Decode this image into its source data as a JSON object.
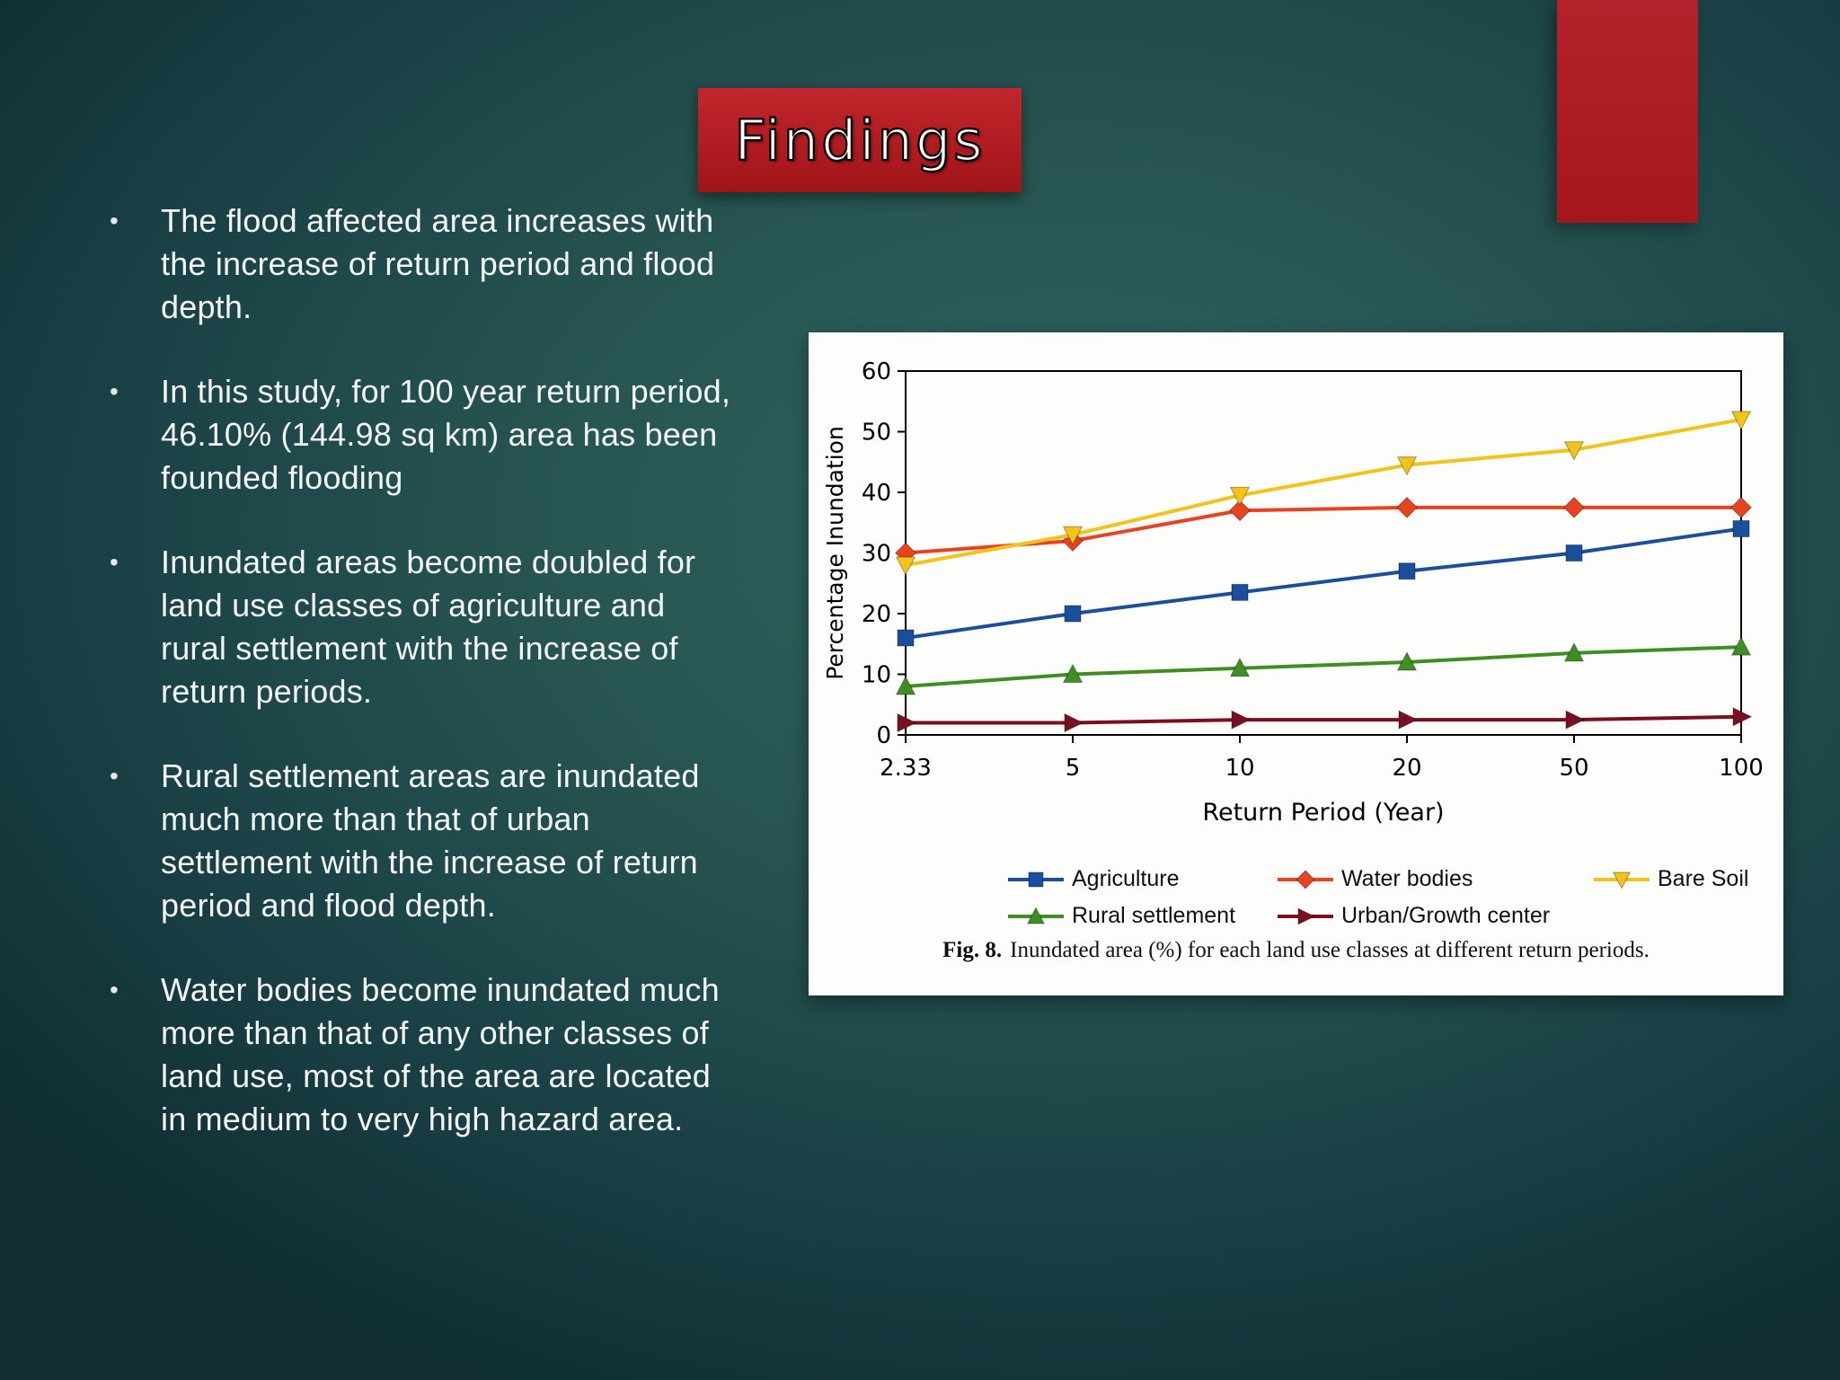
{
  "slide": {
    "title": "Findings",
    "bullet_char": "•",
    "bullets": [
      "The flood affected area increases with the increase of return period and flood depth.",
      "In this study, for 100 year return period, 46.10% (144.98 sq km) area has been founded flooding",
      "Inundated areas become doubled for land use classes of agriculture and rural settlement with the increase of return periods.",
      "Rural settlement areas are inundated much more than that of urban settlement with the increase of return period and flood depth.",
      "Water bodies become inundated much more than that of any other classes of land use, most of the area are located in medium to very high hazard area."
    ]
  },
  "figure": {
    "caption_prefix": "Fig. 8.",
    "caption_text": "Inundated area (%) for each land use classes at different return periods."
  },
  "colors": {
    "accent_red": "#b2222a",
    "background_teal": "#275551",
    "panel_white": "#fdfdfc"
  },
  "chart_data": {
    "type": "line",
    "title": "",
    "xlabel": "Return Period (Year)",
    "ylabel": "Percentage Inundation",
    "categories": [
      "2.33",
      "5",
      "10",
      "20",
      "50",
      "100"
    ],
    "ylim": [
      0,
      60
    ],
    "ytick_step": 10,
    "grid": false,
    "legend_position": "bottom",
    "series": [
      {
        "name": "Agriculture",
        "color": "#1b4f9c",
        "marker": "square",
        "values": [
          16,
          20,
          23.5,
          27,
          30,
          34
        ]
      },
      {
        "name": "Water bodies",
        "color": "#e8431f",
        "marker": "diamond",
        "values": [
          30,
          32,
          37,
          37.5,
          37.5,
          37.5
        ]
      },
      {
        "name": "Bare Soil",
        "color": "#f2c31b",
        "marker": "triangle-down",
        "values": [
          28,
          33,
          39.5,
          44.5,
          47,
          52
        ]
      },
      {
        "name": "Rural settlement",
        "color": "#3e8e23",
        "marker": "triangle-up",
        "values": [
          8,
          10,
          11,
          12,
          13.5,
          14.5
        ]
      },
      {
        "name": "Urban/Growth center",
        "color": "#7b0f20",
        "marker": "triangle-right",
        "values": [
          2,
          2,
          2.5,
          2.5,
          2.5,
          3
        ]
      }
    ]
  }
}
